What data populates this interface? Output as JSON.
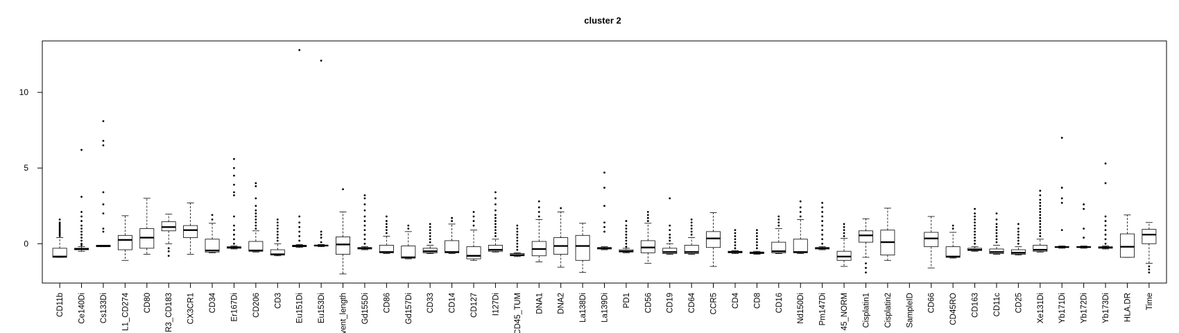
{
  "chart_data": {
    "type": "boxplot",
    "title": "cluster 2",
    "xlabel": "",
    "ylabel": "",
    "ylim": [
      -2.6,
      13.4
    ],
    "yticks": [
      0,
      5,
      10
    ],
    "ytick_labels": [
      "0",
      "5",
      "10"
    ],
    "grid": false,
    "legend": "none",
    "colors": {
      "box_fill": "#ffffff",
      "stroke": "#000000"
    },
    "categories": [
      "CD11b",
      "Ce140Di",
      "Cs133Di",
      "L1_CD274",
      "CD80",
      "R3_CD183",
      "CX3CR1",
      "CD34",
      "Er167Di",
      "CD206",
      "CD3",
      "Eu151Di",
      "Eu153Di",
      "vent_length",
      "Gd155Di",
      "CD86",
      "Gd157Di",
      "CD33",
      "CD14",
      "CD127",
      "I127Di",
      "CD45_TUM",
      "DNA1",
      "DNA2",
      "La138Di",
      "La139Di",
      "PD1",
      "CD56",
      "CD19",
      "CD64",
      "CCR5",
      "CD4",
      "CD8",
      "CD16",
      "Nd150Di",
      "Pm147Di",
      "45_NORM",
      "Cisplatin1",
      "Cisplatin2",
      "SampleID",
      "CD66",
      "CD45RO",
      "CD163",
      "CD11c",
      "CD25",
      "Xe131Di",
      "Yb171Di",
      "Yb172Di",
      "Yb173Di",
      "HLA.DR",
      "Time"
    ],
    "boxes": [
      {
        "q1": -0.9,
        "median": -0.85,
        "q3": -0.3,
        "lw": -0.9,
        "uw": 0.4,
        "outliers": [
          0.5,
          0.6,
          0.7,
          0.8,
          0.9,
          1.0,
          1.1,
          1.2,
          1.3,
          1.4,
          1.6
        ]
      },
      {
        "q1": -0.4,
        "median": -0.35,
        "q3": -0.3,
        "lw": -0.5,
        "uw": -0.2,
        "outliers": [
          -0.1,
          0.0,
          0.2,
          0.4,
          0.6,
          0.8,
          1.0,
          1.2,
          1.5,
          1.8,
          2.1,
          3.1,
          6.2
        ]
      },
      {
        "q1": -0.2,
        "median": -0.15,
        "q3": -0.1,
        "lw": -0.2,
        "uw": -0.1,
        "outliers": [
          0.8,
          1.0,
          2.0,
          2.6,
          3.4,
          6.5,
          6.8,
          8.1
        ]
      },
      {
        "q1": -0.4,
        "median": 0.25,
        "q3": 0.55,
        "lw": -1.1,
        "uw": 1.85,
        "outliers": []
      },
      {
        "q1": -0.3,
        "median": 0.4,
        "q3": 1.0,
        "lw": -0.7,
        "uw": 3.0,
        "outliers": []
      },
      {
        "q1": 0.85,
        "median": 1.1,
        "q3": 1.45,
        "lw": 0.0,
        "uw": 1.95,
        "outliers": [
          -0.3,
          -0.5,
          -0.8
        ]
      },
      {
        "q1": 0.4,
        "median": 0.9,
        "q3": 1.2,
        "lw": -0.7,
        "uw": 2.7,
        "outliers": []
      },
      {
        "q1": -0.55,
        "median": -0.45,
        "q3": 0.3,
        "lw": -0.6,
        "uw": 1.35,
        "outliers": [
          1.6,
          1.9
        ]
      },
      {
        "q1": -0.3,
        "median": -0.25,
        "q3": -0.2,
        "lw": -0.35,
        "uw": -0.15,
        "outliers": [
          0.0,
          0.3,
          0.6,
          0.9,
          1.2,
          1.8,
          3.2,
          3.4,
          3.9,
          4.5,
          5.0,
          5.6
        ]
      },
      {
        "q1": -0.5,
        "median": -0.45,
        "q3": 0.15,
        "lw": -0.55,
        "uw": 0.85,
        "outliers": [
          1.0,
          1.2,
          1.4,
          1.6,
          1.8,
          2.0,
          2.2,
          2.5,
          3.0,
          3.8,
          4.0
        ]
      },
      {
        "q1": -0.75,
        "median": -0.7,
        "q3": -0.4,
        "lw": -0.8,
        "uw": 0.0,
        "outliers": [
          0.2,
          0.4,
          0.6,
          0.8,
          1.0,
          1.2,
          1.4,
          1.6
        ]
      },
      {
        "q1": -0.2,
        "median": -0.15,
        "q3": -0.1,
        "lw": -0.25,
        "uw": -0.05,
        "outliers": [
          0.2,
          0.5,
          0.8,
          1.1,
          1.4,
          1.8,
          12.8
        ]
      },
      {
        "q1": -0.15,
        "median": -0.12,
        "q3": -0.1,
        "lw": -0.2,
        "uw": -0.05,
        "outliers": [
          0.1,
          0.4,
          0.6,
          0.8,
          12.1
        ]
      },
      {
        "q1": -0.7,
        "median": -0.05,
        "q3": 0.45,
        "lw": -2.0,
        "uw": 2.1,
        "outliers": [
          3.6
        ]
      },
      {
        "q1": -0.35,
        "median": -0.3,
        "q3": -0.25,
        "lw": -0.4,
        "uw": -0.2,
        "outliers": [
          0.0,
          0.3,
          0.6,
          0.9,
          1.2,
          1.5,
          1.8,
          2.2,
          2.6,
          3.0,
          3.2
        ]
      },
      {
        "q1": -0.6,
        "median": -0.55,
        "q3": -0.1,
        "lw": -0.65,
        "uw": 0.5,
        "outliers": [
          0.7,
          0.9,
          1.1,
          1.3,
          1.5,
          1.8
        ]
      },
      {
        "q1": -0.95,
        "median": -0.9,
        "q3": -0.15,
        "lw": -1.0,
        "uw": 0.8,
        "outliers": [
          1.0,
          1.2
        ]
      },
      {
        "q1": -0.6,
        "median": -0.5,
        "q3": -0.3,
        "lw": -0.65,
        "uw": -0.1,
        "outliers": [
          0.1,
          0.3,
          0.5,
          0.7,
          0.9,
          1.1,
          1.3
        ]
      },
      {
        "q1": -0.6,
        "median": -0.55,
        "q3": 0.2,
        "lw": -0.65,
        "uw": 1.3,
        "outliers": [
          1.5,
          1.7
        ]
      },
      {
        "q1": -1.0,
        "median": -0.8,
        "q3": -0.2,
        "lw": -1.1,
        "uw": 0.9,
        "outliers": [
          1.2,
          1.5,
          1.8,
          2.1
        ]
      },
      {
        "q1": -0.5,
        "median": -0.4,
        "q3": -0.1,
        "lw": -0.55,
        "uw": 0.3,
        "outliers": [
          0.5,
          0.7,
          0.9,
          1.1,
          1.3,
          1.5,
          1.7,
          1.9,
          2.2,
          2.6,
          3.0,
          3.4
        ]
      },
      {
        "q1": -0.8,
        "median": -0.75,
        "q3": -0.65,
        "lw": -0.85,
        "uw": -0.6,
        "outliers": [
          -0.4,
          -0.2,
          0.0,
          0.2,
          0.4,
          0.6,
          0.8,
          1.0,
          1.2
        ]
      },
      {
        "q1": -0.8,
        "median": -0.35,
        "q3": 0.15,
        "lw": -1.2,
        "uw": 1.6,
        "outliers": [
          1.8,
          2.1,
          2.4,
          2.8
        ]
      },
      {
        "q1": -0.7,
        "median": -0.15,
        "q3": 0.4,
        "lw": -1.55,
        "uw": 2.1,
        "outliers": [
          2.35
        ]
      },
      {
        "q1": -1.1,
        "median": -0.15,
        "q3": 0.55,
        "lw": -1.9,
        "uw": 1.35,
        "outliers": []
      },
      {
        "q1": -0.35,
        "median": -0.3,
        "q3": -0.25,
        "lw": -0.4,
        "uw": -0.2,
        "outliers": [
          0.8,
          1.1,
          1.4,
          2.5,
          3.7,
          4.7
        ]
      },
      {
        "q1": -0.55,
        "median": -0.5,
        "q3": -0.4,
        "lw": -0.6,
        "uw": -0.3,
        "outliers": [
          -0.2,
          0.0,
          0.2,
          0.4,
          0.6,
          0.8,
          1.0,
          1.2,
          1.5
        ]
      },
      {
        "q1": -0.6,
        "median": -0.25,
        "q3": 0.2,
        "lw": -1.3,
        "uw": 1.35,
        "outliers": [
          1.5,
          1.7,
          1.9,
          2.1
        ]
      },
      {
        "q1": -0.65,
        "median": -0.55,
        "q3": -0.3,
        "lw": -0.7,
        "uw": 0.0,
        "outliers": [
          0.2,
          0.4,
          0.6,
          0.9,
          1.2,
          3.0
        ]
      },
      {
        "q1": -0.65,
        "median": -0.55,
        "q3": -0.1,
        "lw": -0.7,
        "uw": 0.4,
        "outliers": [
          0.6,
          0.8,
          1.0,
          1.2,
          1.4,
          1.6
        ]
      },
      {
        "q1": -0.25,
        "median": 0.35,
        "q3": 0.8,
        "lw": -1.5,
        "uw": 2.05,
        "outliers": []
      },
      {
        "q1": -0.6,
        "median": -0.55,
        "q3": -0.5,
        "lw": -0.65,
        "uw": -0.45,
        "outliers": [
          -0.3,
          -0.1,
          0.1,
          0.3,
          0.5,
          0.7,
          0.9
        ]
      },
      {
        "q1": -0.65,
        "median": -0.6,
        "q3": -0.55,
        "lw": -0.7,
        "uw": -0.5,
        "outliers": [
          -0.3,
          -0.1,
          0.1,
          0.3,
          0.5,
          0.7,
          0.9
        ]
      },
      {
        "q1": -0.6,
        "median": -0.5,
        "q3": 0.1,
        "lw": -0.65,
        "uw": 1.0,
        "outliers": [
          1.2,
          1.4,
          1.6,
          1.8
        ]
      },
      {
        "q1": -0.6,
        "median": -0.55,
        "q3": 0.3,
        "lw": -0.65,
        "uw": 1.6,
        "outliers": [
          1.8,
          2.1,
          2.4,
          2.8
        ]
      },
      {
        "q1": -0.35,
        "median": -0.3,
        "q3": -0.25,
        "lw": -0.4,
        "uw": -0.2,
        "outliers": [
          0.0,
          0.3,
          0.6,
          0.9,
          1.2,
          1.5,
          1.8,
          2.1,
          2.4,
          2.7
        ]
      },
      {
        "q1": -1.1,
        "median": -0.85,
        "q3": -0.5,
        "lw": -1.5,
        "uw": 0.35,
        "outliers": [
          0.5,
          0.7,
          0.9,
          1.1,
          1.3
        ]
      },
      {
        "q1": 0.1,
        "median": 0.55,
        "q3": 0.85,
        "lw": -0.9,
        "uw": 1.65,
        "outliers": [
          -1.3,
          -1.6,
          -1.9
        ]
      },
      {
        "q1": -0.75,
        "median": 0.1,
        "q3": 0.9,
        "lw": -1.1,
        "uw": 2.35,
        "outliers": []
      },
      {
        "q1": null,
        "median": null,
        "q3": null,
        "lw": null,
        "uw": null,
        "outliers": []
      },
      {
        "q1": -0.2,
        "median": 0.35,
        "q3": 0.75,
        "lw": -1.6,
        "uw": 1.8,
        "outliers": []
      },
      {
        "q1": -0.9,
        "median": -0.85,
        "q3": -0.2,
        "lw": -0.95,
        "uw": 0.75,
        "outliers": [
          1.0,
          1.2
        ]
      },
      {
        "q1": -0.45,
        "median": -0.4,
        "q3": -0.3,
        "lw": -0.5,
        "uw": -0.2,
        "outliers": [
          0.0,
          0.2,
          0.4,
          0.6,
          0.8,
          1.0,
          1.2,
          1.4,
          1.6,
          1.8,
          2.0,
          2.3
        ]
      },
      {
        "q1": -0.65,
        "median": -0.55,
        "q3": -0.35,
        "lw": -0.7,
        "uw": -0.1,
        "outliers": [
          0.1,
          0.3,
          0.5,
          0.7,
          0.9,
          1.1,
          1.3,
          1.6,
          2.0
        ]
      },
      {
        "q1": -0.7,
        "median": -0.6,
        "q3": -0.4,
        "lw": -0.75,
        "uw": -0.2,
        "outliers": [
          0.0,
          0.2,
          0.4,
          0.6,
          0.8,
          1.0,
          1.3
        ]
      },
      {
        "q1": -0.5,
        "median": -0.4,
        "q3": -0.1,
        "lw": -0.55,
        "uw": 0.3,
        "outliers": [
          0.5,
          0.7,
          0.9,
          1.1,
          1.3,
          1.5,
          1.7,
          1.9,
          2.1,
          2.3,
          2.5,
          2.7,
          2.9,
          3.2,
          3.5
        ]
      },
      {
        "q1": -0.25,
        "median": -0.22,
        "q3": -0.2,
        "lw": -0.3,
        "uw": -0.15,
        "outliers": [
          0.9,
          2.7,
          3.0,
          3.7,
          7.0
        ]
      },
      {
        "q1": -0.25,
        "median": -0.22,
        "q3": -0.2,
        "lw": -0.3,
        "uw": -0.15,
        "outliers": [
          0.4,
          1.0,
          2.3,
          2.6
        ]
      },
      {
        "q1": -0.3,
        "median": -0.25,
        "q3": -0.2,
        "lw": -0.35,
        "uw": -0.15,
        "outliers": [
          0.0,
          0.3,
          0.6,
          0.9,
          1.2,
          1.5,
          1.8,
          4.0,
          5.3
        ]
      },
      {
        "q1": -0.9,
        "median": -0.2,
        "q3": 0.65,
        "lw": -0.9,
        "uw": 1.9,
        "outliers": []
      },
      {
        "q1": 0.0,
        "median": 0.6,
        "q3": 0.95,
        "lw": -1.3,
        "uw": 1.4,
        "outliers": [
          -1.5,
          -1.7,
          -1.9
        ]
      }
    ]
  }
}
